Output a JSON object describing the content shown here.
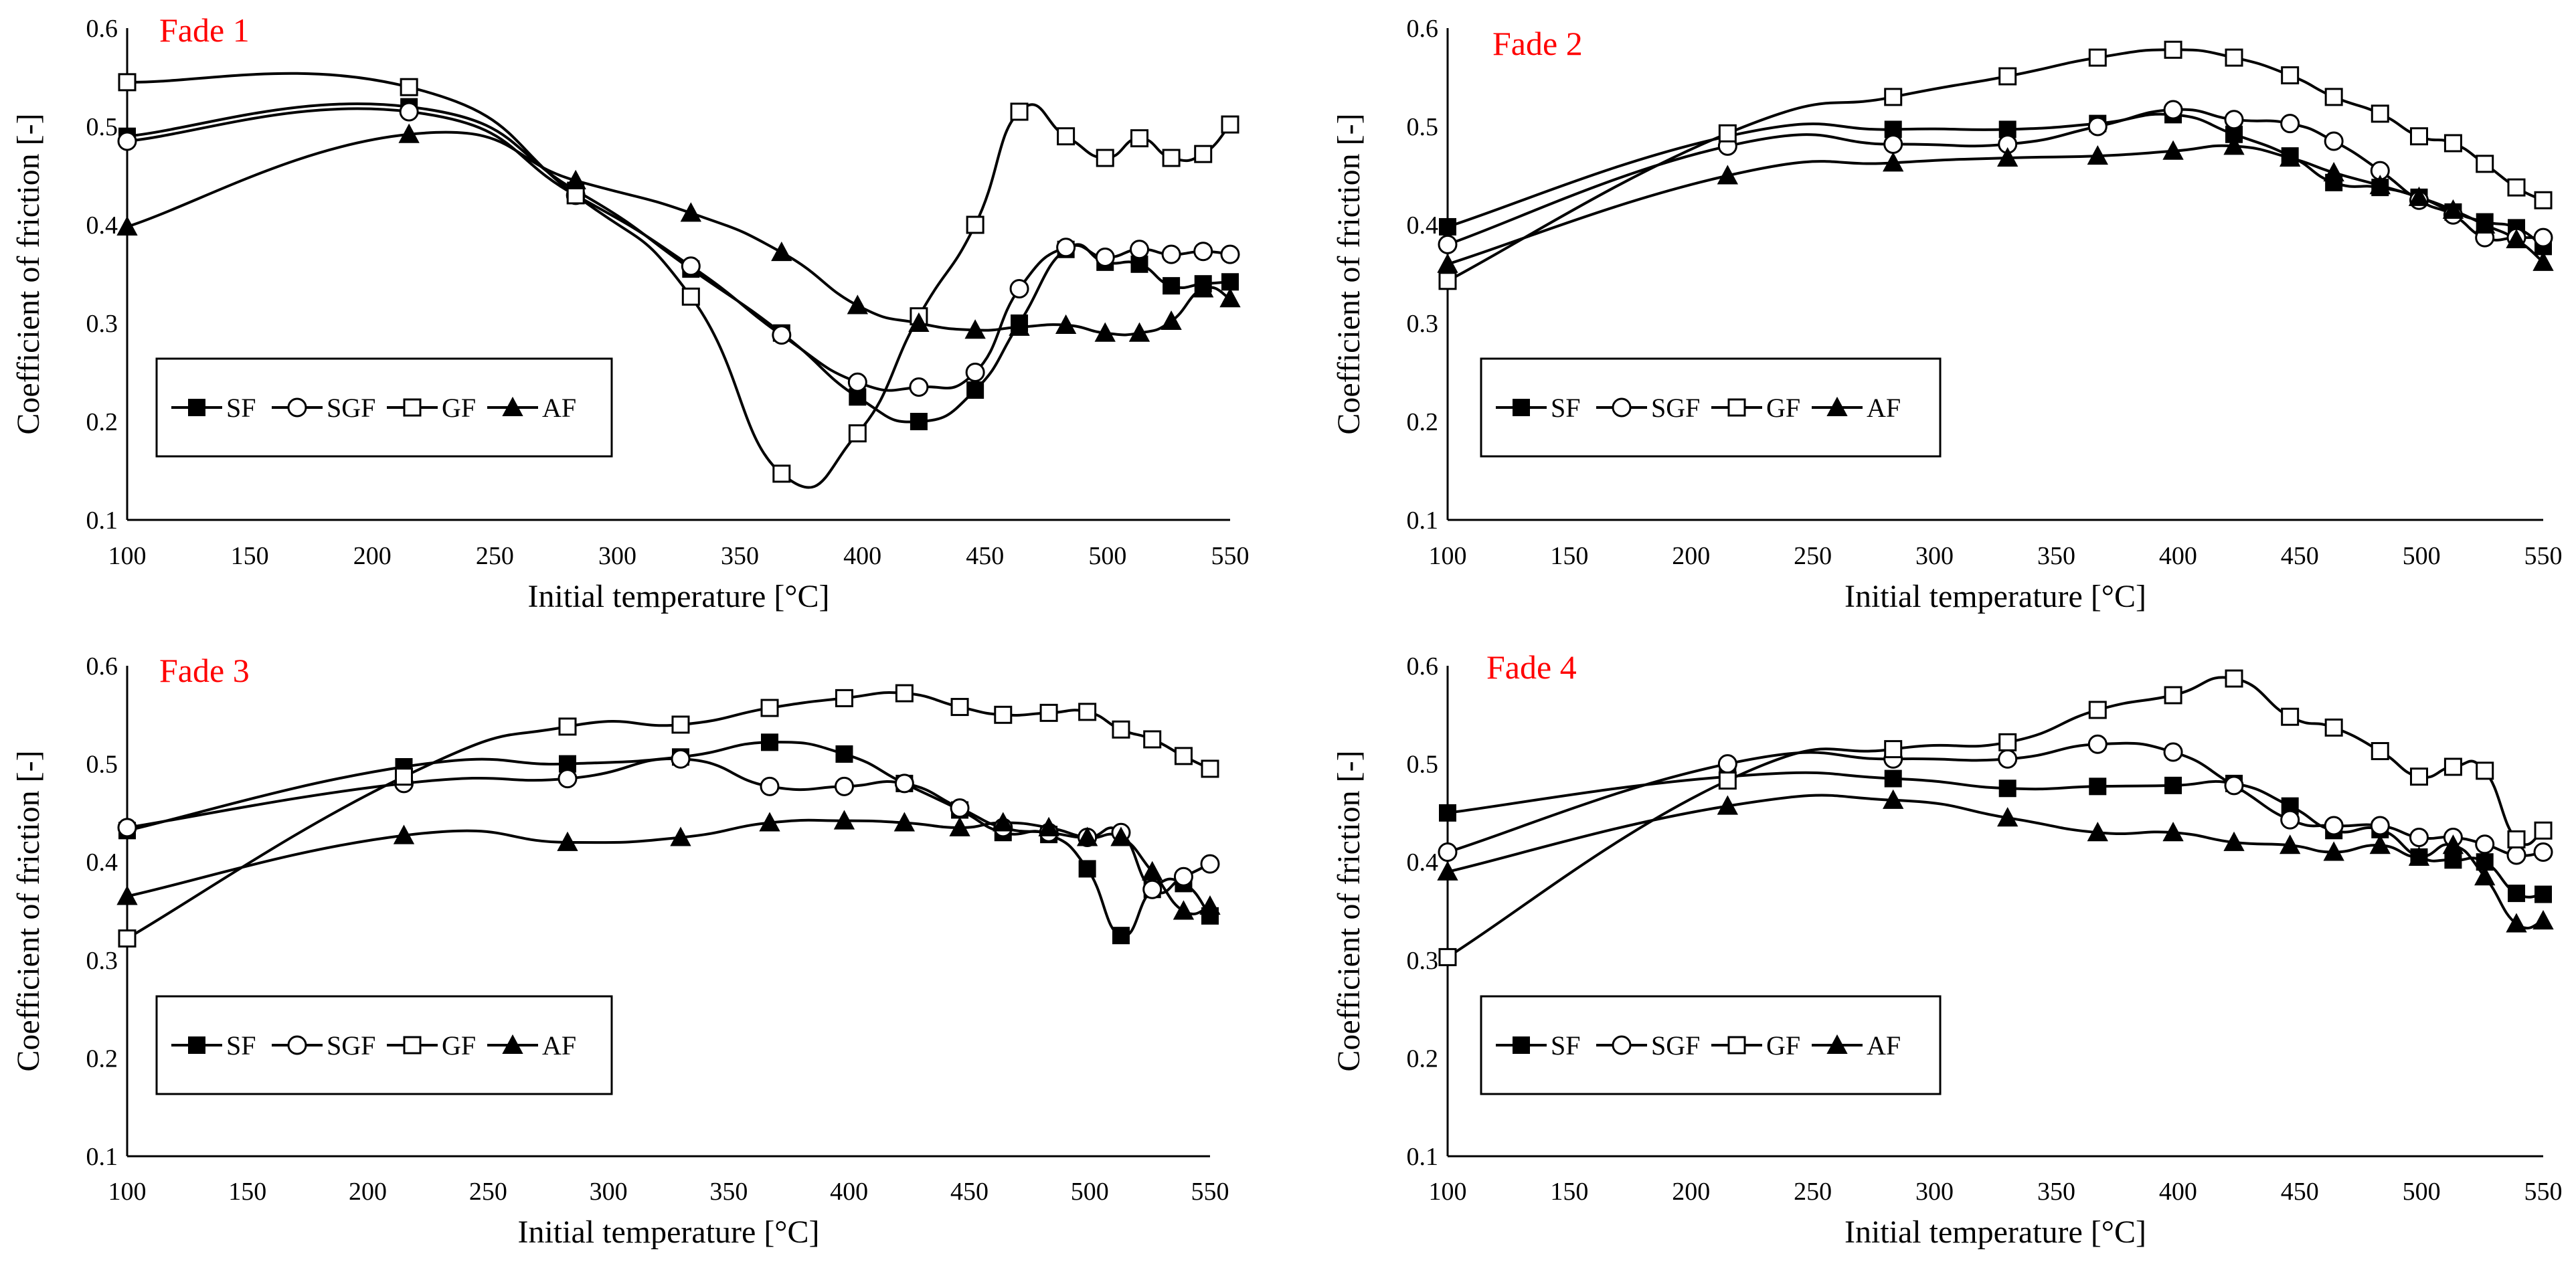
{
  "colors": {
    "title": "#ff0000",
    "series": "#000000",
    "background": "#ffffff"
  },
  "chart_data": [
    {
      "type": "line",
      "title": "Fade 1",
      "xlabel": "Initial temperature [°C]",
      "ylabel": "Coefficient of friction [-]",
      "xlim": [
        100,
        550
      ],
      "ylim": [
        0.1,
        0.6
      ],
      "xticks": [
        "100",
        "150",
        "200",
        "250",
        "300",
        "350",
        "400",
        "450",
        "500",
        "550"
      ],
      "yticks": [
        "0.1",
        "0.2",
        "0.3",
        "0.4",
        "0.5",
        "0.6"
      ],
      "legend": [
        "SF",
        "SGF",
        "GF",
        "AF"
      ],
      "legend_position": "lower-left",
      "series": [
        {
          "name": "SF",
          "marker": "square-filled",
          "x": [
            100,
            215,
            283,
            330,
            367,
            398,
            423,
            446,
            464,
            483,
            499,
            513,
            526,
            539,
            550
          ],
          "y": [
            0.49,
            0.52,
            0.435,
            0.355,
            0.29,
            0.225,
            0.2,
            0.232,
            0.3,
            0.375,
            0.362,
            0.36,
            0.338,
            0.34,
            0.342
          ]
        },
        {
          "name": "SGF",
          "marker": "circle-open",
          "x": [
            100,
            215,
            283,
            330,
            367,
            398,
            423,
            446,
            464,
            483,
            499,
            513,
            526,
            539,
            550
          ],
          "y": [
            0.485,
            0.515,
            0.43,
            0.358,
            0.288,
            0.24,
            0.235,
            0.25,
            0.335,
            0.377,
            0.367,
            0.375,
            0.37,
            0.373,
            0.37
          ]
        },
        {
          "name": "GF",
          "marker": "square-open",
          "x": [
            100,
            215,
            283,
            330,
            367,
            398,
            423,
            446,
            464,
            483,
            499,
            513,
            526,
            539,
            550
          ],
          "y": [
            0.545,
            0.54,
            0.43,
            0.327,
            0.147,
            0.188,
            0.307,
            0.4,
            0.515,
            0.49,
            0.468,
            0.488,
            0.468,
            0.472,
            0.502
          ]
        },
        {
          "name": "AF",
          "marker": "triangle-filled",
          "x": [
            100,
            215,
            283,
            330,
            367,
            398,
            423,
            446,
            464,
            483,
            499,
            513,
            526,
            539,
            550
          ],
          "y": [
            0.398,
            0.492,
            0.445,
            0.412,
            0.372,
            0.318,
            0.3,
            0.293,
            0.296,
            0.298,
            0.29,
            0.29,
            0.302,
            0.335,
            0.325
          ]
        }
      ]
    },
    {
      "type": "line",
      "title": "Fade 2",
      "xlabel": "Initial temperature [°C]",
      "ylabel": "Coefficient of friction [-]",
      "xlim": [
        100,
        550
      ],
      "ylim": [
        0.1,
        0.6
      ],
      "xticks": [
        "100",
        "150",
        "200",
        "250",
        "300",
        "350",
        "400",
        "450",
        "500",
        "550"
      ],
      "yticks": [
        "0.1",
        "0.2",
        "0.3",
        "0.4",
        "0.5",
        "0.6"
      ],
      "legend": [
        "SF",
        "SGF",
        "GF",
        "AF"
      ],
      "legend_position": "lower-left",
      "series": [
        {
          "name": "SF",
          "marker": "square-filled",
          "x": [
            100,
            215,
            283,
            330,
            367,
            398,
            423,
            446,
            464,
            483,
            499,
            513,
            526,
            539,
            550
          ],
          "y": [
            0.398,
            0.49,
            0.497,
            0.497,
            0.503,
            0.512,
            0.492,
            0.47,
            0.443,
            0.438,
            0.428,
            0.413,
            0.403,
            0.397,
            0.378
          ]
        },
        {
          "name": "SGF",
          "marker": "circle-open",
          "x": [
            100,
            215,
            283,
            330,
            367,
            398,
            423,
            446,
            464,
            483,
            499,
            513,
            526,
            539,
            550
          ],
          "y": [
            0.38,
            0.48,
            0.482,
            0.482,
            0.5,
            0.517,
            0.507,
            0.503,
            0.485,
            0.455,
            0.425,
            0.41,
            0.387,
            0.387,
            0.387
          ]
        },
        {
          "name": "GF",
          "marker": "square-open",
          "x": [
            100,
            215,
            283,
            330,
            367,
            398,
            423,
            446,
            464,
            483,
            499,
            513,
            526,
            539,
            550
          ],
          "y": [
            0.343,
            0.493,
            0.53,
            0.551,
            0.57,
            0.578,
            0.57,
            0.552,
            0.53,
            0.513,
            0.49,
            0.483,
            0.462,
            0.438,
            0.425
          ]
        },
        {
          "name": "AF",
          "marker": "triangle-filled",
          "x": [
            100,
            215,
            283,
            330,
            367,
            398,
            423,
            446,
            464,
            483,
            499,
            513,
            526,
            539,
            550
          ],
          "y": [
            0.36,
            0.45,
            0.463,
            0.468,
            0.47,
            0.475,
            0.48,
            0.468,
            0.453,
            0.44,
            0.428,
            0.415,
            0.4,
            0.385,
            0.362
          ]
        }
      ]
    },
    {
      "type": "line",
      "title": "Fade 3",
      "xlabel": "Initial temperature [°C]",
      "ylabel": "Coefficient of friction [-]",
      "xlim": [
        100,
        550
      ],
      "ylim": [
        0.1,
        0.6
      ],
      "xticks": [
        "100",
        "150",
        "200",
        "250",
        "300",
        "350",
        "400",
        "450",
        "500",
        "550"
      ],
      "yticks": [
        "0.1",
        "0.2",
        "0.3",
        "0.4",
        "0.5",
        "0.6"
      ],
      "legend": [
        "SF",
        "SGF",
        "GF",
        "AF"
      ],
      "legend_position": "lower-left",
      "series": [
        {
          "name": "SF",
          "marker": "square-filled",
          "x": [
            100,
            215,
            283,
            330,
            367,
            398,
            423,
            446,
            464,
            483,
            499,
            513,
            526,
            539,
            550
          ],
          "y": [
            0.432,
            0.497,
            0.5,
            0.507,
            0.522,
            0.51,
            0.48,
            0.453,
            0.43,
            0.428,
            0.393,
            0.325,
            0.372,
            0.378,
            0.345
          ]
        },
        {
          "name": "SGF",
          "marker": "circle-open",
          "x": [
            100,
            215,
            283,
            330,
            367,
            398,
            423,
            446,
            464,
            483,
            499,
            513,
            526,
            539,
            550
          ],
          "y": [
            0.435,
            0.48,
            0.485,
            0.505,
            0.477,
            0.477,
            0.48,
            0.455,
            0.435,
            0.43,
            0.425,
            0.43,
            0.372,
            0.385,
            0.398
          ]
        },
        {
          "name": "GF",
          "marker": "square-open",
          "x": [
            100,
            215,
            283,
            330,
            367,
            398,
            423,
            446,
            464,
            483,
            499,
            513,
            526,
            539,
            550
          ],
          "y": [
            0.322,
            0.487,
            0.538,
            0.54,
            0.557,
            0.567,
            0.572,
            0.558,
            0.55,
            0.552,
            0.553,
            0.535,
            0.525,
            0.508,
            0.495
          ]
        },
        {
          "name": "AF",
          "marker": "triangle-filled",
          "x": [
            100,
            215,
            283,
            330,
            367,
            398,
            423,
            446,
            464,
            483,
            499,
            513,
            526,
            539,
            550
          ],
          "y": [
            0.365,
            0.427,
            0.42,
            0.425,
            0.44,
            0.442,
            0.44,
            0.435,
            0.44,
            0.435,
            0.425,
            0.425,
            0.39,
            0.35,
            0.355
          ]
        }
      ]
    },
    {
      "type": "line",
      "title": "Fade 4",
      "xlabel": "Initial temperature [°C]",
      "ylabel": "Coefficient of friction [-]",
      "xlim": [
        100,
        550
      ],
      "ylim": [
        0.1,
        0.6
      ],
      "xticks": [
        "100",
        "150",
        "200",
        "250",
        "300",
        "350",
        "400",
        "450",
        "500",
        "550"
      ],
      "yticks": [
        "0.1",
        "0.2",
        "0.3",
        "0.4",
        "0.5",
        "0.6"
      ],
      "legend": [
        "SF",
        "SGF",
        "GF",
        "AF"
      ],
      "legend_position": "lower-left",
      "series": [
        {
          "name": "SF",
          "marker": "square-filled",
          "x": [
            100,
            215,
            283,
            330,
            367,
            398,
            423,
            446,
            464,
            483,
            499,
            513,
            526,
            539,
            550
          ],
          "y": [
            0.45,
            0.487,
            0.485,
            0.475,
            0.477,
            0.478,
            0.48,
            0.457,
            0.432,
            0.433,
            0.405,
            0.402,
            0.4,
            0.368,
            0.367
          ]
        },
        {
          "name": "SGF",
          "marker": "circle-open",
          "x": [
            100,
            215,
            283,
            330,
            367,
            398,
            423,
            446,
            464,
            483,
            499,
            513,
            526,
            539,
            550
          ],
          "y": [
            0.41,
            0.5,
            0.505,
            0.505,
            0.52,
            0.512,
            0.478,
            0.443,
            0.437,
            0.437,
            0.425,
            0.425,
            0.418,
            0.407,
            0.41
          ]
        },
        {
          "name": "GF",
          "marker": "square-open",
          "x": [
            100,
            215,
            283,
            330,
            367,
            398,
            423,
            446,
            464,
            483,
            499,
            513,
            526,
            539,
            550
          ],
          "y": [
            0.303,
            0.483,
            0.515,
            0.522,
            0.555,
            0.57,
            0.587,
            0.548,
            0.537,
            0.513,
            0.487,
            0.497,
            0.493,
            0.423,
            0.432
          ]
        },
        {
          "name": "AF",
          "marker": "triangle-filled",
          "x": [
            100,
            215,
            283,
            330,
            367,
            398,
            423,
            446,
            464,
            483,
            499,
            513,
            526,
            539,
            550
          ],
          "y": [
            0.39,
            0.457,
            0.463,
            0.445,
            0.43,
            0.43,
            0.42,
            0.417,
            0.41,
            0.417,
            0.405,
            0.417,
            0.385,
            0.337,
            0.34
          ]
        }
      ]
    }
  ]
}
